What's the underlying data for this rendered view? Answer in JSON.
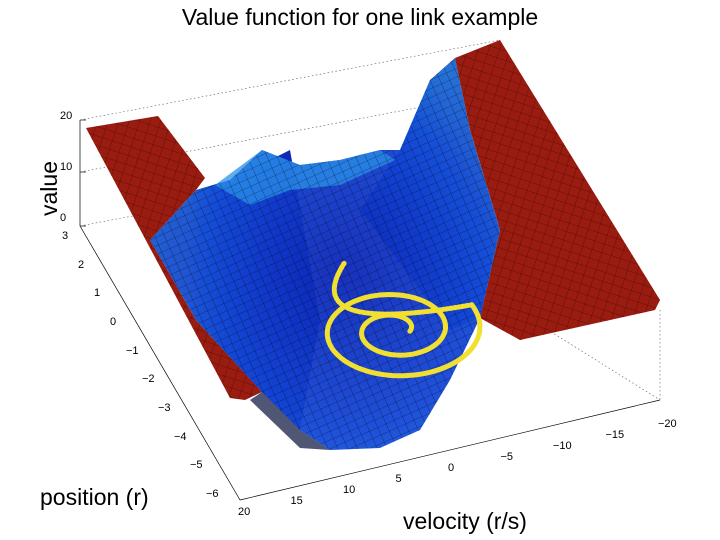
{
  "chart_data": {
    "type": "surface",
    "title": "Value function for one link example",
    "xlabel": "velocity (r/s)",
    "ylabel": "position (r)",
    "zlabel": "value",
    "x_ticks": [
      "20",
      "15",
      "10",
      "5",
      "0",
      "−5",
      "−10",
      "−15",
      "−20"
    ],
    "y_ticks": [
      "−6",
      "−5",
      "−4",
      "−3",
      "−2",
      "−1",
      "0",
      "1",
      "2",
      "3"
    ],
    "z_ticks": [
      "0",
      "10",
      "20"
    ],
    "xlim": [
      -20,
      20
    ],
    "ylim": [
      -6,
      3
    ],
    "zlim": [
      0,
      20
    ],
    "colormap": "jet",
    "grid": true,
    "series": [
      {
        "type": "trajectory",
        "color": "#f0e030",
        "description_free": true,
        "points": [
          [
            0,
            -1.4
          ],
          [
            4,
            -1.0
          ],
          [
            8,
            0.5
          ],
          [
            8,
            1.2
          ],
          [
            2,
            0.2
          ],
          [
            -2,
            -0.5
          ],
          [
            -3,
            -1.4
          ],
          [
            -1,
            -2.1
          ],
          [
            3,
            -2.0
          ],
          [
            4,
            -1.5
          ],
          [
            2,
            -1.2
          ],
          [
            0,
            -1.4
          ]
        ]
      }
    ]
  }
}
